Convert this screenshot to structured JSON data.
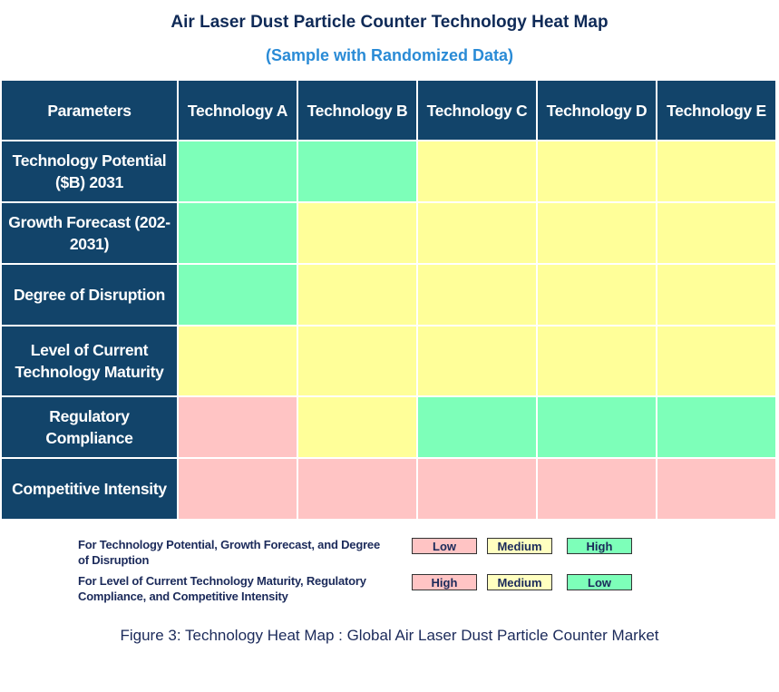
{
  "colors": {
    "header": "#12446a",
    "high_good": "#7dffb9",
    "medium": "#ffff99",
    "low_good": "#ffc4c4"
  },
  "chart_data": {
    "type": "heatmap",
    "title": "Air Laser Dust Particle Counter Technology Heat Map",
    "subtitle": "(Sample with Randomized Data)",
    "corner_label": "Parameters",
    "columns": [
      "Technology A",
      "Technology B",
      "Technology C",
      "Technology D",
      "Technology E"
    ],
    "rows": [
      {
        "label": "Technology Potential ($B) 2031",
        "group": 1,
        "values": [
          "High",
          "High",
          "Medium",
          "Medium",
          "Medium"
        ]
      },
      {
        "label": "Growth Forecast (202-2031)",
        "group": 1,
        "values": [
          "High",
          "Medium",
          "Medium",
          "Medium",
          "Medium"
        ]
      },
      {
        "label": "Degree of Disruption",
        "group": 1,
        "values": [
          "High",
          "Medium",
          "Medium",
          "Medium",
          "Medium"
        ]
      },
      {
        "label": "Level of Current Technology Maturity",
        "group": 2,
        "values": [
          "Medium",
          "Medium",
          "Medium",
          "Medium",
          "Medium"
        ]
      },
      {
        "label": "Regulatory Compliance",
        "group": 2,
        "values": [
          "High",
          "Medium",
          "Low",
          "Low",
          "Low"
        ]
      },
      {
        "label": "Competitive Intensity",
        "group": 2,
        "values": [
          "High",
          "High",
          "High",
          "High",
          "High"
        ]
      }
    ],
    "legend": [
      {
        "text": "For Technology Potential, Growth Forecast, and Degree of Disruption",
        "items": [
          {
            "label": "Low",
            "color": "#ffc4c4"
          },
          {
            "label": "Medium",
            "color": "#ffffc0"
          },
          {
            "label": "High",
            "color": "#7dffb9"
          }
        ]
      },
      {
        "text": "For Level of Current Technology Maturity, Regulatory Compliance, and Competitive Intensity",
        "items": [
          {
            "label": "High",
            "color": "#ffc4c4"
          },
          {
            "label": "Medium",
            "color": "#ffffc0"
          },
          {
            "label": "Low",
            "color": "#7dffb9"
          }
        ]
      }
    ]
  },
  "caption": "Figure 3: Technology Heat Map :  Global Air Laser Dust Particle Counter Market"
}
